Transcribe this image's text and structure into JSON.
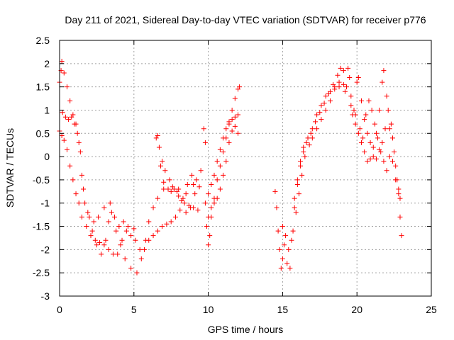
{
  "chart_data": {
    "type": "scatter",
    "title": "Day 211 of 2021, Sidereal Day-to-day VTEC variation (SDTVAR) for receiver p776",
    "xlabel": "GPS time / hours",
    "ylabel": "SDTVAR / TECUs",
    "xlim": [
      0,
      25
    ],
    "ylim": [
      -3,
      2.5
    ],
    "xticks": [
      0,
      5,
      10,
      15,
      20,
      25
    ],
    "yticks": [
      -3,
      -2.5,
      -2,
      -1.5,
      -1,
      -0.5,
      0,
      0.5,
      1,
      1.5,
      2,
      2.5
    ],
    "xtick_labels": [
      "0",
      "5",
      "10",
      "15",
      "20",
      "25"
    ],
    "ytick_labels": [
      "-3",
      "-2.5",
      "-2",
      "-1.5",
      "-1",
      "-0.5",
      "0",
      "0.5",
      "1",
      "1.5",
      "2",
      "2.5"
    ],
    "grid": true,
    "marker": "+",
    "color": "#ff0000",
    "series": [
      {
        "name": "p776",
        "points": [
          [
            0.0,
            1.6
          ],
          [
            0.1,
            1.85
          ],
          [
            0.15,
            2.05
          ],
          [
            0.3,
            1.8
          ],
          [
            0.5,
            1.5
          ],
          [
            0.7,
            1.2
          ],
          [
            0.9,
            0.9
          ],
          [
            1.1,
            0.7
          ],
          [
            1.3,
            0.3
          ],
          [
            1.5,
            -0.4
          ],
          [
            1.7,
            -1.0
          ],
          [
            2.0,
            -1.3
          ],
          [
            2.2,
            -1.6
          ],
          [
            2.5,
            -1.9
          ],
          [
            2.8,
            -2.1
          ],
          [
            3.1,
            -1.8
          ],
          [
            3.3,
            -1.4
          ],
          [
            3.5,
            -1.2
          ],
          [
            3.8,
            -1.6
          ],
          [
            4.1,
            -1.9
          ],
          [
            4.4,
            -2.2
          ],
          [
            4.8,
            -2.4
          ],
          [
            5.2,
            -2.5
          ],
          [
            5.5,
            -2.2
          ],
          [
            5.8,
            -1.8
          ],
          [
            6.0,
            -1.4
          ],
          [
            6.3,
            -1.1
          ],
          [
            6.6,
            -0.9
          ],
          [
            7.0,
            -0.7
          ],
          [
            7.5,
            -0.75
          ],
          [
            8.0,
            -0.7
          ],
          [
            8.5,
            -0.8
          ],
          [
            9.0,
            -0.6
          ],
          [
            9.5,
            -0.3
          ],
          [
            0.0,
            0.55
          ],
          [
            0.15,
            0.45
          ],
          [
            0.3,
            0.35
          ],
          [
            0.5,
            0.15
          ],
          [
            0.7,
            -0.2
          ],
          [
            0.9,
            -0.5
          ],
          [
            1.1,
            -0.8
          ],
          [
            1.3,
            -1.0
          ],
          [
            1.5,
            -1.3
          ],
          [
            1.8,
            -1.5
          ],
          [
            2.1,
            -1.7
          ],
          [
            2.4,
            -1.8
          ],
          [
            2.7,
            -1.85
          ],
          [
            3.0,
            -1.9
          ],
          [
            3.3,
            -2.0
          ],
          [
            3.6,
            -2.1
          ],
          [
            3.9,
            -2.1
          ],
          [
            4.2,
            -1.8
          ],
          [
            4.5,
            -1.6
          ],
          [
            4.8,
            -1.7
          ],
          [
            5.1,
            -1.8
          ],
          [
            5.4,
            -2.0
          ],
          [
            5.7,
            -2.0
          ],
          [
            6.0,
            -1.8
          ],
          [
            6.3,
            -1.7
          ],
          [
            6.6,
            -1.6
          ],
          [
            6.9,
            -1.5
          ],
          [
            7.2,
            -1.45
          ],
          [
            7.5,
            -1.4
          ],
          [
            7.8,
            -1.3
          ],
          [
            8.1,
            -1.15
          ],
          [
            8.4,
            -1.0
          ],
          [
            8.7,
            -1.05
          ],
          [
            9.0,
            -1.1
          ],
          [
            9.3,
            -1.15
          ],
          [
            0.2,
            0.95
          ],
          [
            0.4,
            0.85
          ],
          [
            0.6,
            0.8
          ],
          [
            0.8,
            0.85
          ],
          [
            1.0,
            0.7
          ],
          [
            1.2,
            0.5
          ],
          [
            1.4,
            0.1
          ],
          [
            1.6,
            -0.7
          ],
          [
            1.9,
            -1.2
          ],
          [
            2.3,
            -1.4
          ],
          [
            2.6,
            -1.3
          ],
          [
            3.0,
            -1.1
          ],
          [
            3.4,
            -1.0
          ],
          [
            3.7,
            -1.3
          ],
          [
            4.0,
            -1.5
          ],
          [
            4.3,
            -1.4
          ],
          [
            4.6,
            -1.5
          ],
          [
            5.0,
            -1.55
          ],
          [
            6.5,
            0.4
          ],
          [
            6.7,
            0.2
          ],
          [
            6.9,
            -0.1
          ],
          [
            7.1,
            -0.3
          ],
          [
            7.4,
            -0.5
          ],
          [
            7.7,
            -0.7
          ],
          [
            8.0,
            -0.85
          ],
          [
            8.3,
            -0.9
          ],
          [
            8.6,
            -0.6
          ],
          [
            8.9,
            -0.4
          ],
          [
            9.2,
            -0.5
          ],
          [
            6.6,
            0.45
          ],
          [
            6.8,
            -0.2
          ],
          [
            7.0,
            -0.55
          ],
          [
            7.3,
            -0.7
          ],
          [
            7.6,
            -0.65
          ],
          [
            7.9,
            -0.75
          ],
          [
            8.2,
            -0.95
          ],
          [
            8.5,
            -1.2
          ],
          [
            8.8,
            -1.1
          ],
          [
            9.1,
            -0.8
          ],
          [
            9.4,
            -0.65
          ],
          [
            9.7,
            0.6
          ],
          [
            9.8,
            0.3
          ],
          [
            9.9,
            -1.5
          ],
          [
            10.0,
            -1.9
          ],
          [
            10.1,
            -1.7
          ],
          [
            10.2,
            -1.3
          ],
          [
            10.4,
            -0.9
          ],
          [
            10.6,
            -0.5
          ],
          [
            10.8,
            -0.2
          ],
          [
            11.0,
            0.1
          ],
          [
            11.2,
            0.4
          ],
          [
            11.4,
            0.7
          ],
          [
            11.6,
            1.0
          ],
          [
            11.8,
            1.25
          ],
          [
            12.0,
            1.45
          ],
          [
            12.1,
            1.5
          ],
          [
            9.8,
            -1.0
          ],
          [
            10.0,
            -0.8
          ],
          [
            10.2,
            -0.6
          ],
          [
            10.4,
            -0.4
          ],
          [
            10.6,
            -0.1
          ],
          [
            10.8,
            0.15
          ],
          [
            11.0,
            0.4
          ],
          [
            11.2,
            0.6
          ],
          [
            11.4,
            0.75
          ],
          [
            11.6,
            0.8
          ],
          [
            11.8,
            0.85
          ],
          [
            12.0,
            0.9
          ],
          [
            10.0,
            -1.3
          ],
          [
            10.2,
            -1.1
          ],
          [
            10.4,
            -1.0
          ],
          [
            10.6,
            -0.9
          ],
          [
            10.8,
            -0.7
          ],
          [
            11.0,
            -0.4
          ],
          [
            11.2,
            -0.1
          ],
          [
            11.4,
            0.3
          ],
          [
            11.6,
            0.55
          ],
          [
            11.8,
            0.65
          ],
          [
            12.0,
            0.5
          ],
          [
            14.5,
            -0.75
          ],
          [
            14.6,
            -1.1
          ],
          [
            14.7,
            -1.6
          ],
          [
            14.8,
            -2.0
          ],
          [
            14.9,
            -2.4
          ],
          [
            15.0,
            -2.2
          ],
          [
            15.1,
            -1.9
          ],
          [
            15.3,
            -2.3
          ],
          [
            15.5,
            -2.4
          ],
          [
            15.7,
            -1.6
          ],
          [
            15.9,
            -1.2
          ],
          [
            16.1,
            -0.8
          ],
          [
            16.3,
            -0.4
          ],
          [
            16.5,
            0.0
          ],
          [
            16.8,
            0.25
          ],
          [
            17.0,
            0.4
          ],
          [
            17.3,
            0.6
          ],
          [
            17.6,
            0.8
          ],
          [
            17.9,
            1.0
          ],
          [
            18.2,
            1.2
          ],
          [
            18.5,
            1.45
          ],
          [
            18.8,
            1.6
          ],
          [
            19.1,
            1.55
          ],
          [
            19.3,
            1.5
          ],
          [
            19.5,
            1.7
          ],
          [
            19.6,
            1.3
          ],
          [
            19.8,
            1.0
          ],
          [
            20.0,
            1.6
          ],
          [
            20.1,
            1.7
          ],
          [
            20.3,
            1.2
          ],
          [
            20.5,
            0.8
          ],
          [
            20.7,
            0.5
          ],
          [
            20.9,
            0.3
          ],
          [
            21.1,
            0.2
          ],
          [
            21.3,
            0.5
          ],
          [
            21.5,
            1.0
          ],
          [
            21.7,
            1.6
          ],
          [
            21.8,
            1.85
          ],
          [
            22.0,
            1.3
          ],
          [
            22.2,
            0.6
          ],
          [
            22.4,
            0.4
          ],
          [
            22.6,
            -0.2
          ],
          [
            22.8,
            -0.8
          ],
          [
            22.9,
            -1.3
          ],
          [
            23.0,
            -1.7
          ],
          [
            15.0,
            -1.5
          ],
          [
            15.2,
            -1.7
          ],
          [
            15.4,
            -2.0
          ],
          [
            15.6,
            -1.8
          ],
          [
            15.8,
            -1.1
          ],
          [
            16.0,
            -0.6
          ],
          [
            16.2,
            -0.2
          ],
          [
            16.4,
            0.1
          ],
          [
            16.6,
            0.3
          ],
          [
            16.9,
            0.5
          ],
          [
            17.2,
            0.75
          ],
          [
            17.5,
            0.95
          ],
          [
            17.8,
            1.15
          ],
          [
            18.1,
            1.35
          ],
          [
            18.4,
            1.55
          ],
          [
            18.7,
            1.75
          ],
          [
            18.9,
            1.9
          ],
          [
            19.1,
            1.85
          ],
          [
            19.4,
            1.9
          ],
          [
            19.7,
            0.9
          ],
          [
            19.9,
            0.7
          ],
          [
            20.1,
            0.5
          ],
          [
            20.3,
            0.3
          ],
          [
            20.5,
            0.1
          ],
          [
            20.7,
            -0.1
          ],
          [
            20.9,
            -0.05
          ],
          [
            21.1,
            0.0
          ],
          [
            21.3,
            -0.05
          ],
          [
            21.5,
            0.15
          ],
          [
            21.7,
            0.3
          ],
          [
            21.9,
            0.6
          ],
          [
            22.1,
            1.0
          ],
          [
            22.3,
            0.7
          ],
          [
            22.5,
            0.1
          ],
          [
            22.7,
            -0.5
          ],
          [
            22.9,
            -0.9
          ],
          [
            15.8,
            -0.9
          ],
          [
            16.0,
            -0.5
          ],
          [
            16.2,
            -0.1
          ],
          [
            16.4,
            0.2
          ],
          [
            16.7,
            0.4
          ],
          [
            17.0,
            0.6
          ],
          [
            17.3,
            0.9
          ],
          [
            17.6,
            1.1
          ],
          [
            17.9,
            1.3
          ],
          [
            18.2,
            1.4
          ],
          [
            18.5,
            1.5
          ],
          [
            18.8,
            1.5
          ],
          [
            19.2,
            1.4
          ],
          [
            19.6,
            1.1
          ],
          [
            19.9,
            0.9
          ],
          [
            20.2,
            0.6
          ],
          [
            20.4,
            0.4
          ],
          [
            20.6,
            0.9
          ],
          [
            20.8,
            1.2
          ],
          [
            21.0,
            1.0
          ],
          [
            21.2,
            0.7
          ],
          [
            21.4,
            0.4
          ],
          [
            21.6,
            0.1
          ],
          [
            21.8,
            -0.1
          ],
          [
            22.0,
            -0.3
          ],
          [
            22.2,
            0.0
          ],
          [
            22.4,
            -0.1
          ],
          [
            22.6,
            -0.5
          ],
          [
            22.8,
            -0.7
          ]
        ]
      }
    ]
  }
}
